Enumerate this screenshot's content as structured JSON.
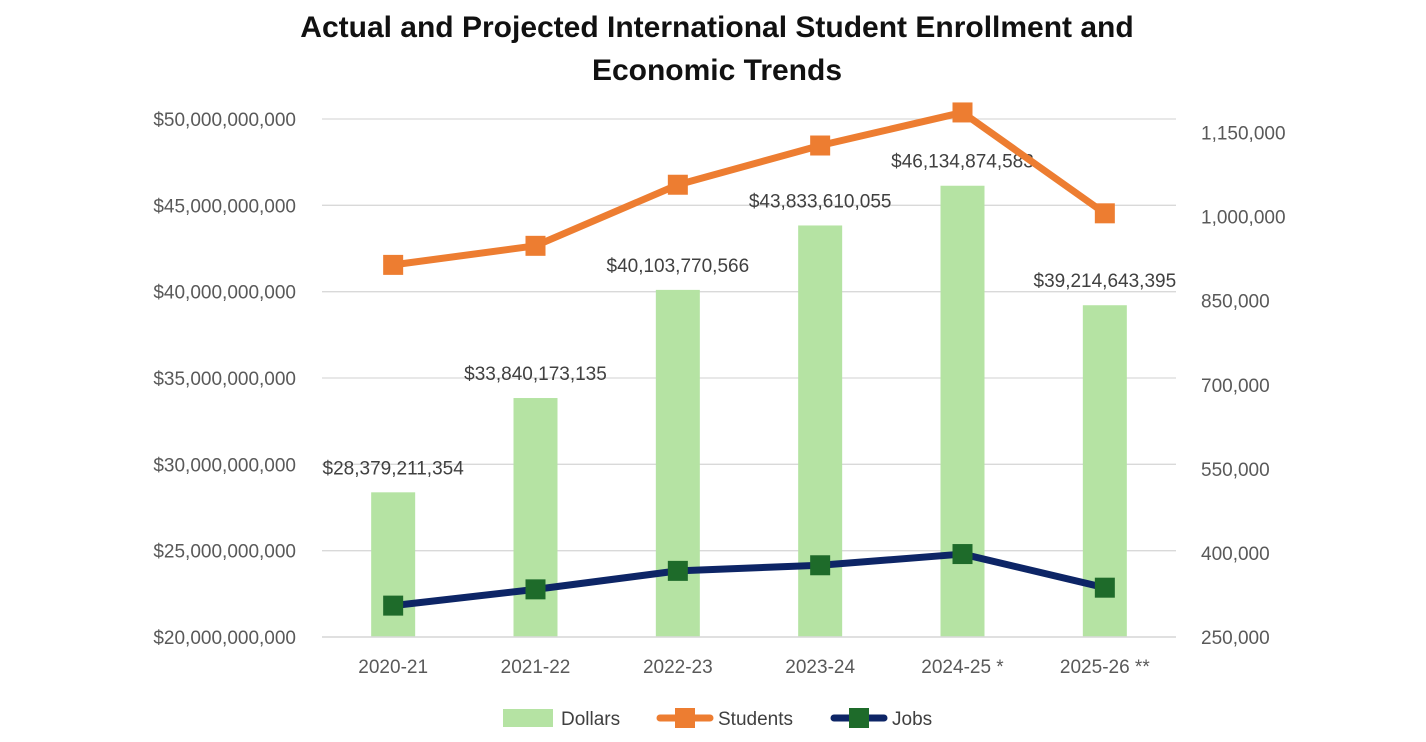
{
  "chart_data": {
    "type": "bar+line",
    "title": [
      "Actual and Projected International Student Enrollment and",
      "Economic Trends"
    ],
    "categories": [
      "2020-21",
      "2021-22",
      "2022-23",
      "2023-24",
      "2024-25 *",
      "2025-26 **"
    ],
    "left_axis": {
      "min": 20000000000,
      "max": 50000000000,
      "ticks": [
        {
          "value": 20000000000,
          "label": "$20,000,000,000"
        },
        {
          "value": 25000000000,
          "label": "$25,000,000,000"
        },
        {
          "value": 30000000000,
          "label": "$30,000,000,000"
        },
        {
          "value": 35000000000,
          "label": "$35,000,000,000"
        },
        {
          "value": 40000000000,
          "label": "$40,000,000,000"
        },
        {
          "value": 45000000000,
          "label": "$45,000,000,000"
        },
        {
          "value": 50000000000,
          "label": "$50,000,000,000"
        }
      ]
    },
    "right_axis": {
      "min": 250000,
      "max": 1200000,
      "ticks": [
        {
          "value": 250000,
          "label": "250,000"
        },
        {
          "value": 400000,
          "label": "400,000"
        },
        {
          "value": 550000,
          "label": "550,000"
        },
        {
          "value": 700000,
          "label": "700,000"
        },
        {
          "value": 850000,
          "label": "850,000"
        },
        {
          "value": 1000000,
          "label": "1,000,000"
        },
        {
          "value": 1150000,
          "label": "1,150,000"
        }
      ]
    },
    "series": [
      {
        "name": "Dollars",
        "type": "bar",
        "axis": "left",
        "color": "#b5e3a3",
        "values": [
          28379211354,
          33840173135,
          40103770566,
          43833610055,
          46134874583,
          39214643395
        ],
        "labels": [
          "$28,379,211,354",
          "$33,840,173,135",
          "$40,103,770,566",
          "$43,833,610,055",
          "$46,134,874,583",
          "$39,214,643,395"
        ]
      },
      {
        "name": "Students",
        "type": "line",
        "axis": "right",
        "color": "#ed7d31",
        "values": [
          914000,
          948000,
          1057000,
          1127000,
          1186000,
          1006000
        ]
      },
      {
        "name": "Jobs",
        "type": "line",
        "axis": "right",
        "color": "#0d2566",
        "marker_color": "#1e6b2a",
        "values": [
          306000,
          335000,
          368000,
          378000,
          398000,
          338000
        ]
      }
    ],
    "legend": {
      "position": "bottom",
      "entries": [
        "Dollars",
        "Students",
        "Jobs"
      ]
    },
    "grid": true
  }
}
